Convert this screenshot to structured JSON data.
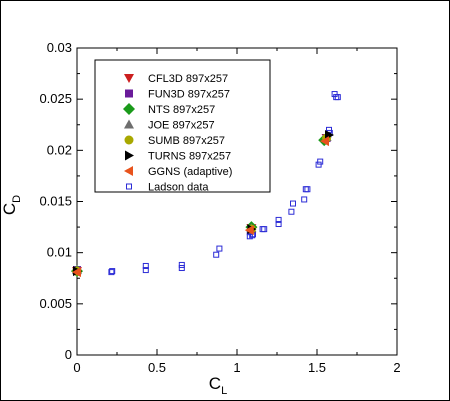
{
  "chart_data": {
    "type": "scatter",
    "xlabel": "C",
    "xlabel_sub": "L",
    "ylabel": "C",
    "ylabel_sub": "D",
    "xlim": [
      0,
      2
    ],
    "ylim": [
      0,
      0.03
    ],
    "xticks": [
      0,
      0.5,
      1,
      1.5,
      2
    ],
    "xtick_labels": [
      "0",
      "0.5",
      "1",
      "1.5",
      "2"
    ],
    "yticks": [
      0,
      0.005,
      0.01,
      0.015,
      0.02,
      0.025,
      0.03
    ],
    "ytick_labels": [
      "0",
      "0.005",
      "0.01",
      "0.015",
      "0.02",
      "0.025",
      "0.03"
    ],
    "grid": false,
    "legend_position": "top-left",
    "series": [
      {
        "name": "CFL3D 897x257",
        "marker": "triangle-down",
        "color": "#cc1f1f",
        "points": [
          [
            0.0,
            0.0082
          ],
          [
            1.09,
            0.0124
          ],
          [
            1.56,
            0.0212
          ]
        ]
      },
      {
        "name": "FUN3D 897x257",
        "marker": "square",
        "color": "#6a1b9a",
        "points": [
          [
            0.0,
            0.0083
          ],
          [
            1.09,
            0.0123
          ],
          [
            1.56,
            0.0212
          ]
        ]
      },
      {
        "name": "NTS 897x257",
        "marker": "diamond",
        "color": "#1a9a1a",
        "points": [
          [
            0.0,
            0.0082
          ],
          [
            1.09,
            0.0125
          ],
          [
            1.545,
            0.021
          ]
        ]
      },
      {
        "name": "JOE 897x257",
        "marker": "triangle-up",
        "color": "#6e6e6e",
        "points": [
          [
            0.0,
            0.0083
          ],
          [
            1.09,
            0.0124
          ],
          [
            1.56,
            0.0213
          ]
        ]
      },
      {
        "name": "SUMB 897x257",
        "marker": "circle",
        "color": "#a8a800",
        "points": [
          [
            0.0,
            0.0082
          ],
          [
            1.09,
            0.0123
          ],
          [
            1.56,
            0.0212
          ]
        ]
      },
      {
        "name": "TURNS 897x257",
        "marker": "triangle-right",
        "color": "#000000",
        "points": [
          [
            0.0,
            0.0082
          ],
          [
            1.09,
            0.0123
          ],
          [
            1.575,
            0.0215
          ]
        ]
      },
      {
        "name": "GGNS (adaptive)",
        "marker": "triangle-left",
        "color": "#e8531c",
        "points": [
          [
            0.0,
            0.0081
          ],
          [
            1.08,
            0.0122
          ],
          [
            1.55,
            0.0209
          ]
        ]
      },
      {
        "name": "Ladson data",
        "marker": "open-square",
        "color": "#2b2bd6",
        "points": [
          [
            0.0,
            0.0082
          ],
          [
            0.0,
            0.0083
          ],
          [
            0.22,
            0.0082
          ],
          [
            0.215,
            0.0081
          ],
          [
            0.43,
            0.0083
          ],
          [
            0.43,
            0.0087
          ],
          [
            0.655,
            0.0085
          ],
          [
            0.655,
            0.0088
          ],
          [
            0.87,
            0.0098
          ],
          [
            0.89,
            0.0104
          ],
          [
            1.08,
            0.0116
          ],
          [
            1.08,
            0.012
          ],
          [
            1.095,
            0.0117
          ],
          [
            1.1,
            0.0118
          ],
          [
            1.16,
            0.0123
          ],
          [
            1.17,
            0.0123
          ],
          [
            1.26,
            0.0128
          ],
          [
            1.26,
            0.0132
          ],
          [
            1.34,
            0.014
          ],
          [
            1.35,
            0.0148
          ],
          [
            1.42,
            0.0152
          ],
          [
            1.43,
            0.0162
          ],
          [
            1.44,
            0.0162
          ],
          [
            1.51,
            0.0186
          ],
          [
            1.52,
            0.0189
          ],
          [
            1.57,
            0.0215
          ],
          [
            1.575,
            0.022
          ],
          [
            1.58,
            0.0217
          ],
          [
            1.61,
            0.0255
          ],
          [
            1.62,
            0.0252
          ],
          [
            1.63,
            0.0252
          ]
        ]
      }
    ]
  }
}
